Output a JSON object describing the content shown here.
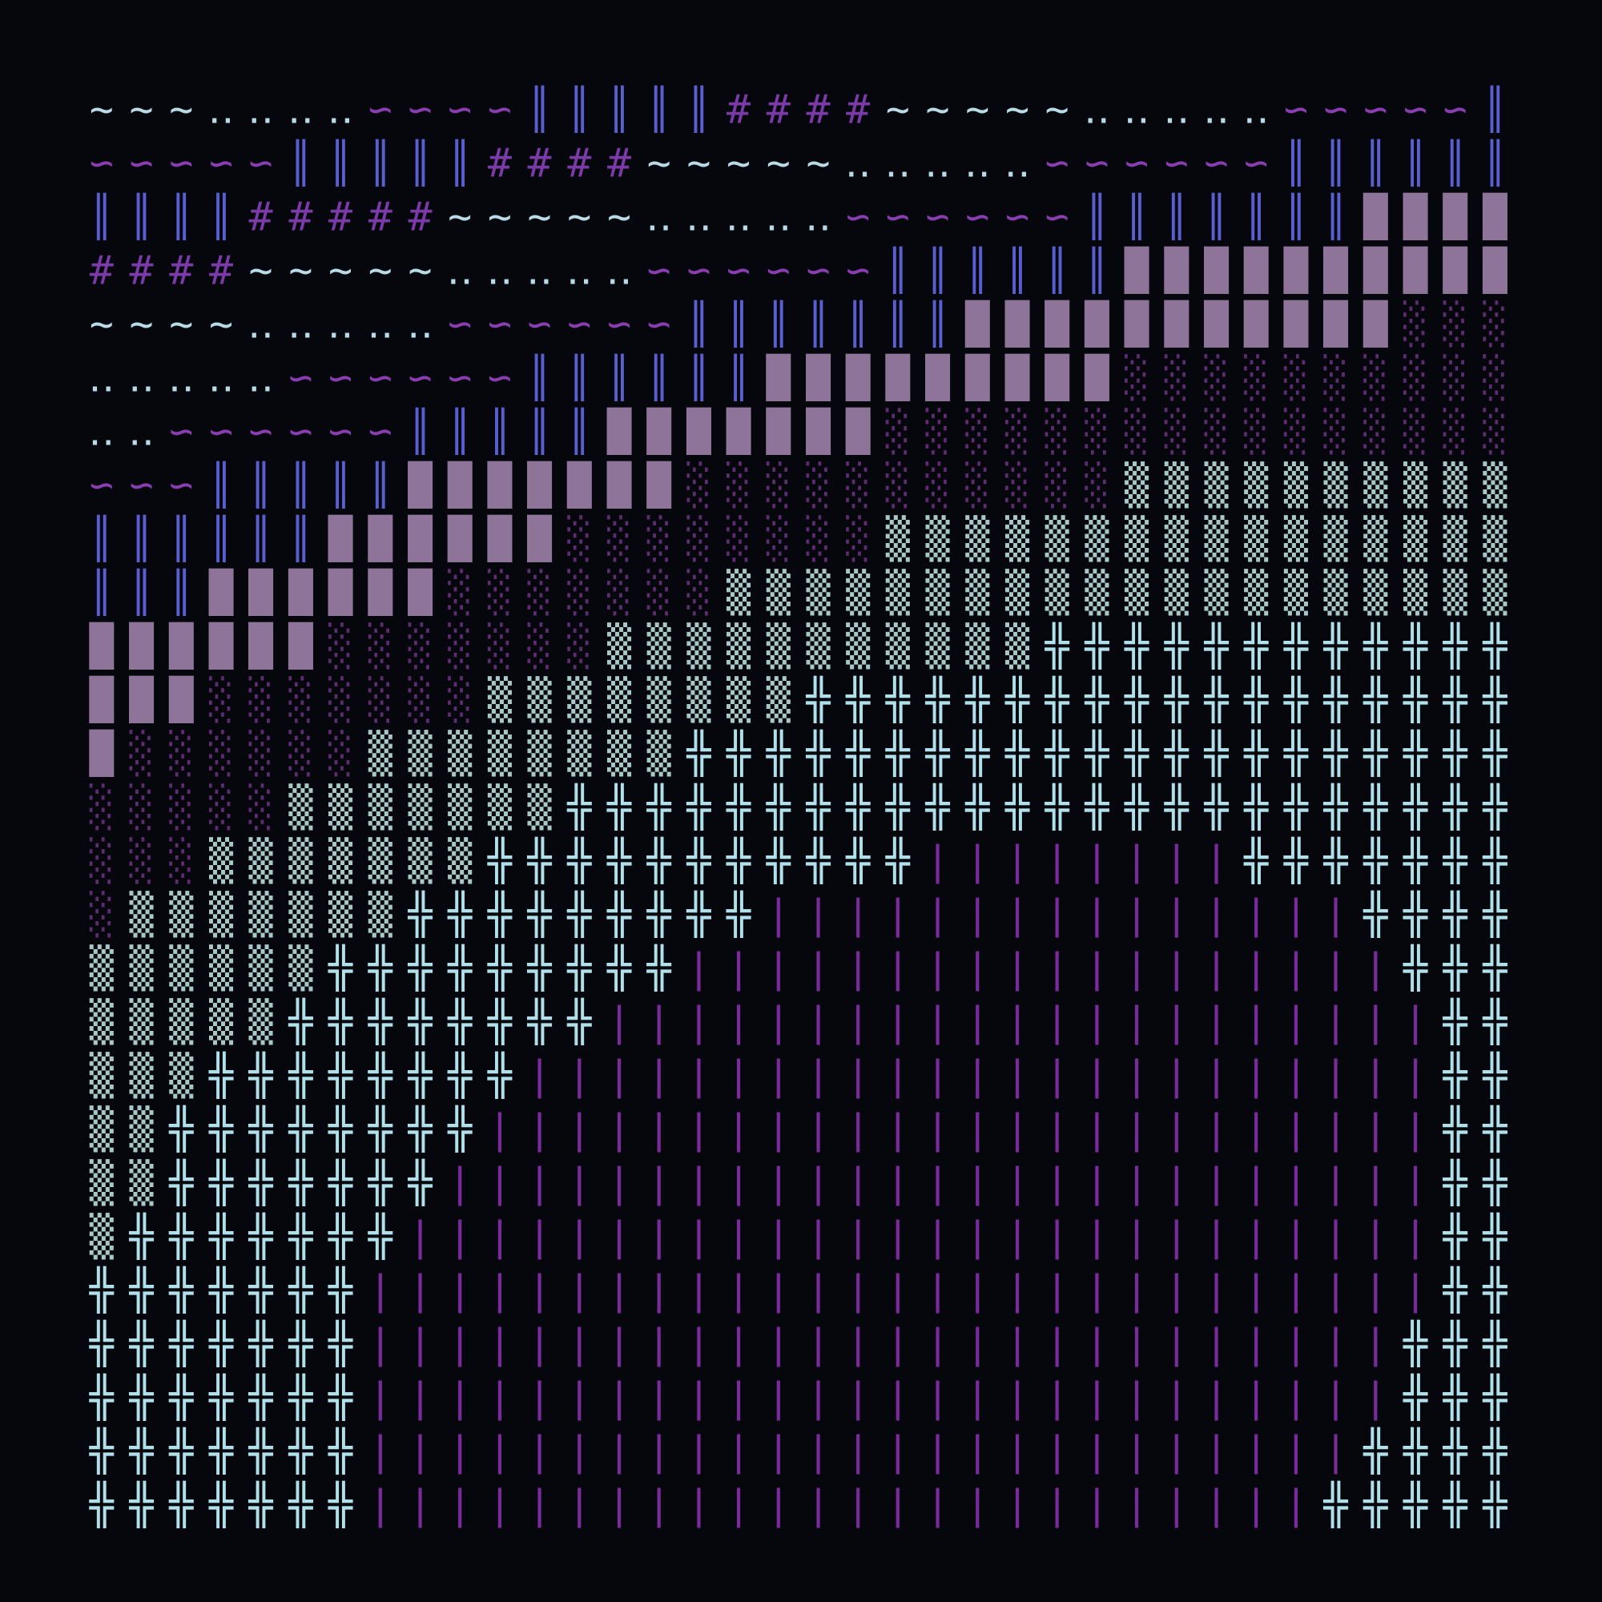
{
  "palette": {
    "~": "#b8dbe6",
    "‥": "#b8dbe6",
    "∽": "#8a3db0",
    "║": "#5a5fd0",
    "#": "#7a3aa8",
    "█": "#8e7499",
    "░": "#5e2c70",
    "▒": "#a8c8c8",
    "╬": "#b0e0ea",
    "|": "#7a2a9a"
  },
  "rows": [
    [
      "~~~",
      "‥‥‥‥",
      "∽∽∽∽",
      "║║║║║",
      "####",
      "~~~~~",
      "‥‥‥‥‥",
      "∽∽∽∽∽",
      "║"
    ],
    [
      "∽∽∽∽∽",
      "║║║║║",
      "####",
      "~~~~~",
      "‥‥‥‥‥",
      "∽∽∽∽∽∽",
      "║║║║║║"
    ],
    [
      "║║║║",
      "#####",
      "~~~~~",
      "‥‥‥‥‥",
      "∽∽∽∽∽∽",
      "║║║║║║║",
      "████"
    ],
    [
      "####",
      "~~~~~",
      "‥‥‥‥‥",
      "∽∽∽∽∽∽",
      "║║║║║║",
      "██████████"
    ],
    [
      "~~~~",
      "‥‥‥‥‥",
      "∽∽∽∽∽∽",
      "║║║║║║║",
      "███████████",
      "░░░"
    ],
    [
      "‥‥‥‥‥",
      "∽∽∽∽∽∽",
      "║║║║║║",
      "█████████",
      "░░░░░░░░░░"
    ],
    [
      "‥‥",
      "∽∽∽∽∽∽",
      "║║║║║",
      "███████",
      "░░░░░░░░░░░░░░░░"
    ],
    [
      "∽∽∽",
      "║║║║║",
      "███████",
      "░░░░░░░░░░░",
      "▒▒▒▒▒▒▒▒▒▒"
    ],
    [
      "║║║║║║",
      "██████",
      "░░░░░░░░",
      "▒▒▒▒▒▒▒▒▒▒▒▒▒▒▒▒"
    ],
    [
      "║║║",
      "██████",
      "░░░░░░░",
      "▒▒▒▒▒▒▒▒▒▒▒▒▒▒▒▒▒▒▒▒"
    ],
    [
      "██████",
      "░░░░░░░",
      "▒▒▒▒▒▒▒▒▒▒▒",
      "╬╬╬╬╬╬╬╬╬╬╬╬"
    ],
    [
      "███",
      "░░░░░░░",
      "▒▒▒▒▒▒▒▒",
      "╬╬╬╬╬╬╬╬╬╬╬╬╬╬╬╬╬╬"
    ],
    [
      "█",
      "░░░░░░",
      "▒▒▒▒▒▒▒▒",
      "╬╬╬╬╬╬╬╬╬╬╬╬╬╬╬╬╬╬╬╬╬"
    ],
    [
      "░░░░░",
      "▒▒▒▒▒▒▒",
      "╬╬╬╬╬╬╬╬╬╬╬╬╬╬╬╬╬╬╬╬╬╬╬╬"
    ],
    [
      "░░░",
      "▒▒▒▒▒▒▒",
      "╬╬╬╬╬╬╬╬╬╬╬",
      "||||||||",
      "╬╬╬╬╬╬╬"
    ],
    [
      "░",
      "▒▒▒▒▒▒▒",
      "╬╬╬╬╬╬╬╬╬",
      "|||||||||||||||",
      "╬╬╬╬"
    ],
    [
      "▒▒▒▒▒▒",
      "╬╬╬╬╬╬╬╬╬",
      "||||||||||||||||||",
      "╬╬╬"
    ],
    [
      "▒▒▒▒▒",
      "╬╬╬╬╬╬╬╬",
      "|||||||||||||||||||||",
      "╬╬"
    ],
    [
      "▒▒▒",
      "╬╬╬╬╬╬╬╬",
      "|||||||||||||||||||||||",
      "╬╬"
    ],
    [
      "▒▒",
      "╬╬╬╬╬╬╬╬",
      "||||||||||||||||||||||||",
      "╬╬"
    ],
    [
      "▒▒",
      "╬╬╬╬╬╬╬",
      "|||||||||||||||||||||||||",
      "╬╬"
    ],
    [
      "▒",
      "╬╬╬╬╬╬╬",
      "||||||||||||||||||||||||||",
      "╬╬"
    ],
    [
      "╬╬╬╬╬╬╬",
      "|||||||||||||||||||||||||||",
      "╬╬"
    ],
    [
      "╬╬╬╬╬╬╬",
      "||||||||||||||||||||||||||",
      "╬╬╬"
    ],
    [
      "╬╬╬╬╬╬╬",
      "||||||||||||||||||||||||||",
      "╬╬╬"
    ],
    [
      "╬╬╬╬╬╬╬",
      "|||||||||||||||||||||||||",
      "╬╬╬╬"
    ],
    [
      "╬╬╬╬╬╬╬",
      "||||||||||||||||||||||||",
      "╬╬╬╬╬"
    ]
  ]
}
